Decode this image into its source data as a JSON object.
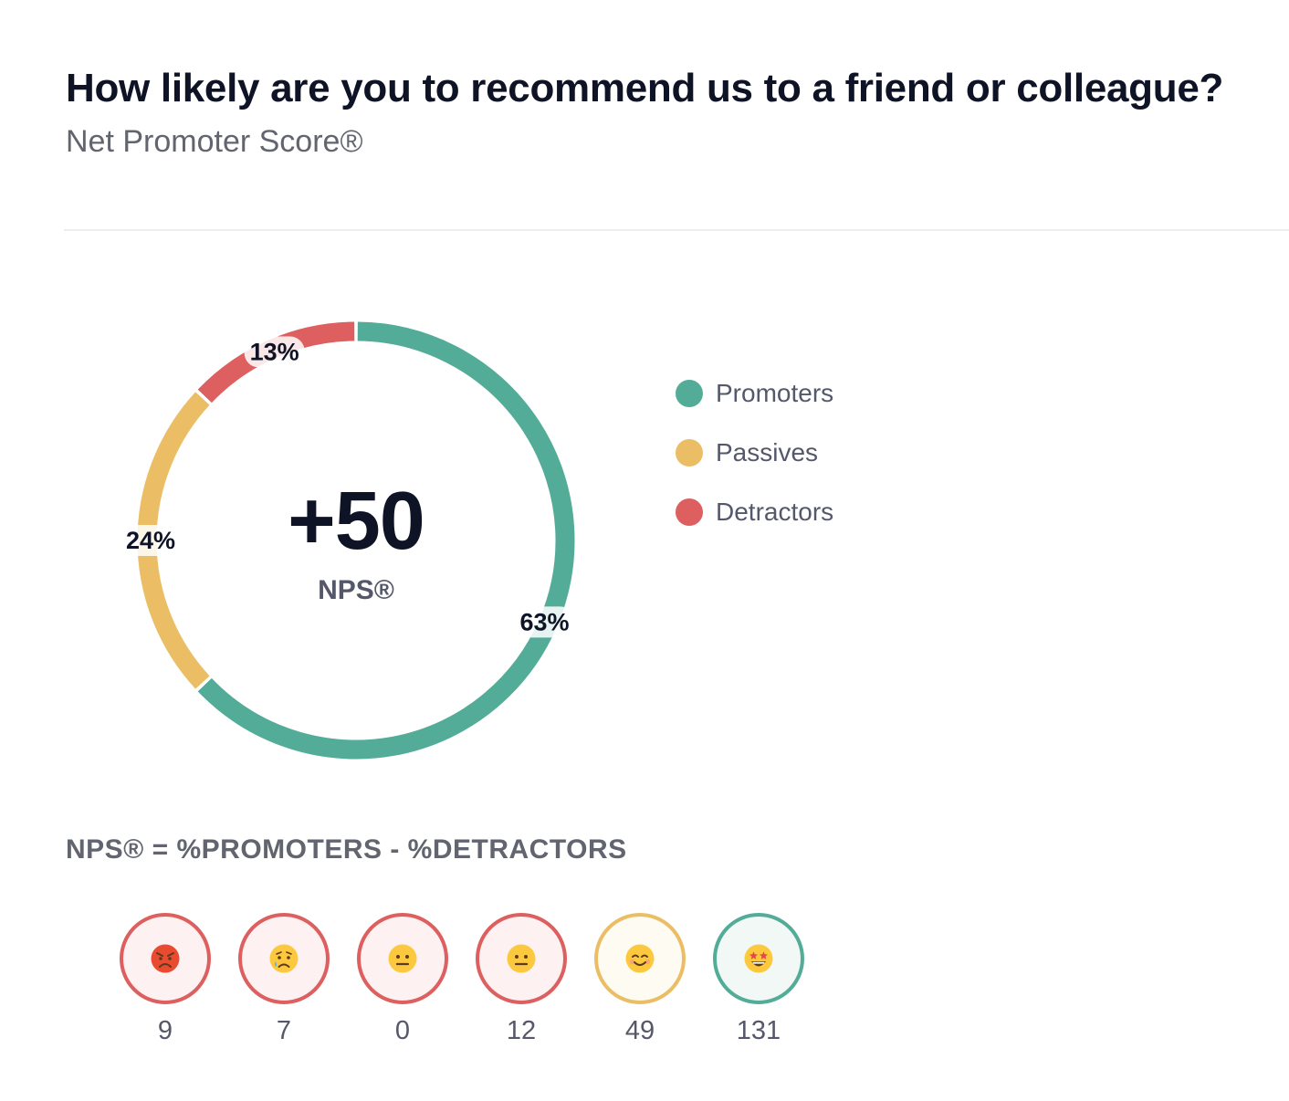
{
  "header": {
    "question": "How likely are you to recommend us to a friend or colleague?",
    "subtitle": "Net Promoter Score®"
  },
  "chart_data": {
    "type": "pie",
    "style": "donut",
    "center_value": "+50",
    "center_label": "NPS®",
    "series": [
      {
        "name": "Promoters",
        "value": 63,
        "label": "63%",
        "color": "#53ac98"
      },
      {
        "name": "Passives",
        "value": 24,
        "label": "24%",
        "color": "#ebbe66"
      },
      {
        "name": "Detractors",
        "value": 13,
        "label": "13%",
        "color": "#dd5f5f"
      }
    ],
    "legend": {
      "placement": "right"
    }
  },
  "legend": {
    "items": [
      {
        "label": "Promoters",
        "color": "#53ac98"
      },
      {
        "label": "Passives",
        "color": "#ebbe66"
      },
      {
        "label": "Detractors",
        "color": "#dd5f5f"
      }
    ]
  },
  "formula": "NPS® = %PROMOTERS - %DETRACTORS",
  "scores": [
    {
      "emoji": "😡",
      "icon": "angry-face-icon",
      "count": "9",
      "border": "#dd5f5f",
      "fill": "#fdf1f1"
    },
    {
      "emoji": "😢",
      "icon": "crying-face-icon",
      "count": "7",
      "border": "#dd5f5f",
      "fill": "#fdf1f1"
    },
    {
      "emoji": "😐",
      "icon": "neutral-face-icon",
      "count": "0",
      "border": "#dd5f5f",
      "fill": "#fdf1f1"
    },
    {
      "emoji": "😐",
      "icon": "neutral-face-icon",
      "count": "12",
      "border": "#dd5f5f",
      "fill": "#fdf1f1"
    },
    {
      "emoji": "😊",
      "icon": "smiling-face-icon",
      "count": "49",
      "border": "#ebbe66",
      "fill": "#fefbf2"
    },
    {
      "emoji": "🤩",
      "icon": "star-struck-face-icon",
      "count": "131",
      "border": "#53ac98",
      "fill": "#f1f8f6"
    }
  ]
}
